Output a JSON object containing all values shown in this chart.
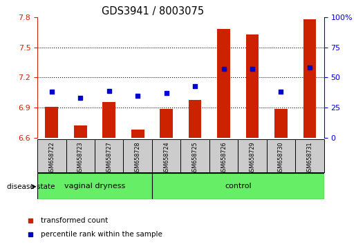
{
  "title": "GDS3941 / 8003075",
  "samples": [
    "GSM658722",
    "GSM658723",
    "GSM658727",
    "GSM658728",
    "GSM658724",
    "GSM658725",
    "GSM658726",
    "GSM658729",
    "GSM658730",
    "GSM658731"
  ],
  "red_values": [
    6.905,
    6.72,
    6.955,
    6.685,
    6.885,
    6.975,
    7.68,
    7.63,
    6.885,
    7.78
  ],
  "blue_values": [
    38,
    33,
    39,
    35,
    37,
    43,
    57,
    57,
    38,
    58
  ],
  "ylim_left": [
    6.6,
    7.8
  ],
  "ylim_right": [
    0,
    100
  ],
  "yticks_left": [
    6.6,
    6.9,
    7.2,
    7.5,
    7.8
  ],
  "yticks_right": [
    0,
    25,
    50,
    75,
    100
  ],
  "group1_label": "vaginal dryness",
  "group2_label": "control",
  "group1_count": 4,
  "group2_count": 6,
  "legend_red": "transformed count",
  "legend_blue": "percentile rank within the sample",
  "bar_color": "#cc2200",
  "marker_color": "#0000cc",
  "group_bg_color": "#66ee66",
  "sample_bg_color": "#cccccc",
  "disease_label": "disease state"
}
